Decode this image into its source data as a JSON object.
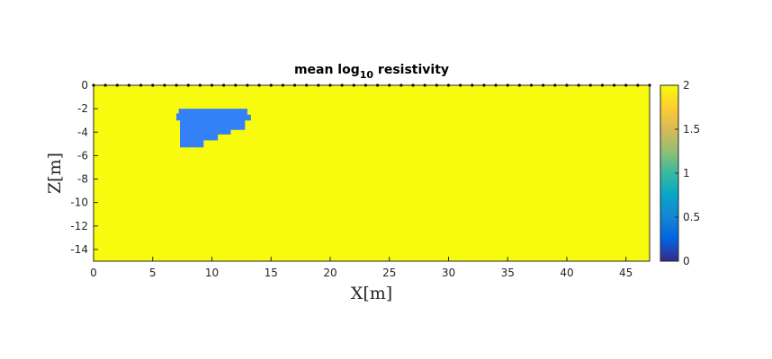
{
  "chart_data": {
    "type": "heatmap",
    "title": "mean log",
    "title_sub": "10",
    "title_rest": " resistivity",
    "xlabel": "X[m]",
    "ylabel": "Z[m]",
    "xlim": [
      0,
      47
    ],
    "ylim": [
      -15,
      0
    ],
    "xticks": [
      0,
      5,
      10,
      15,
      20,
      25,
      30,
      35,
      40,
      45
    ],
    "yticks": [
      0,
      -2,
      -4,
      -6,
      -8,
      -10,
      -12,
      -14
    ],
    "background_value": 2,
    "anomaly": {
      "value": 0.5,
      "polygon": [
        [
          7.2,
          -2.0
        ],
        [
          13.0,
          -2.0
        ],
        [
          13.0,
          -2.5
        ],
        [
          13.3,
          -2.5
        ],
        [
          13.3,
          -3.0
        ],
        [
          12.8,
          -3.0
        ],
        [
          12.8,
          -3.8
        ],
        [
          11.6,
          -3.8
        ],
        [
          11.6,
          -4.2
        ],
        [
          10.5,
          -4.2
        ],
        [
          10.5,
          -4.7
        ],
        [
          9.3,
          -4.7
        ],
        [
          9.3,
          -5.3
        ],
        [
          7.3,
          -5.3
        ],
        [
          7.3,
          -3.0
        ],
        [
          7.0,
          -3.0
        ],
        [
          7.0,
          -2.4
        ],
        [
          7.2,
          -2.4
        ]
      ]
    },
    "electrodes": {
      "z": 0,
      "x_start": 0,
      "x_end": 47,
      "spacing": 1
    },
    "colorbar": {
      "min": 0,
      "max": 2,
      "ticks": [
        0,
        0.5,
        1,
        1.5,
        2
      ],
      "tick_labels": [
        "0",
        "0.5",
        "1",
        "1.5",
        "2"
      ],
      "colormap": "parula"
    },
    "grid": false,
    "colors": {
      "background": "#f9fb0e",
      "anomaly": "#3480f7"
    }
  }
}
